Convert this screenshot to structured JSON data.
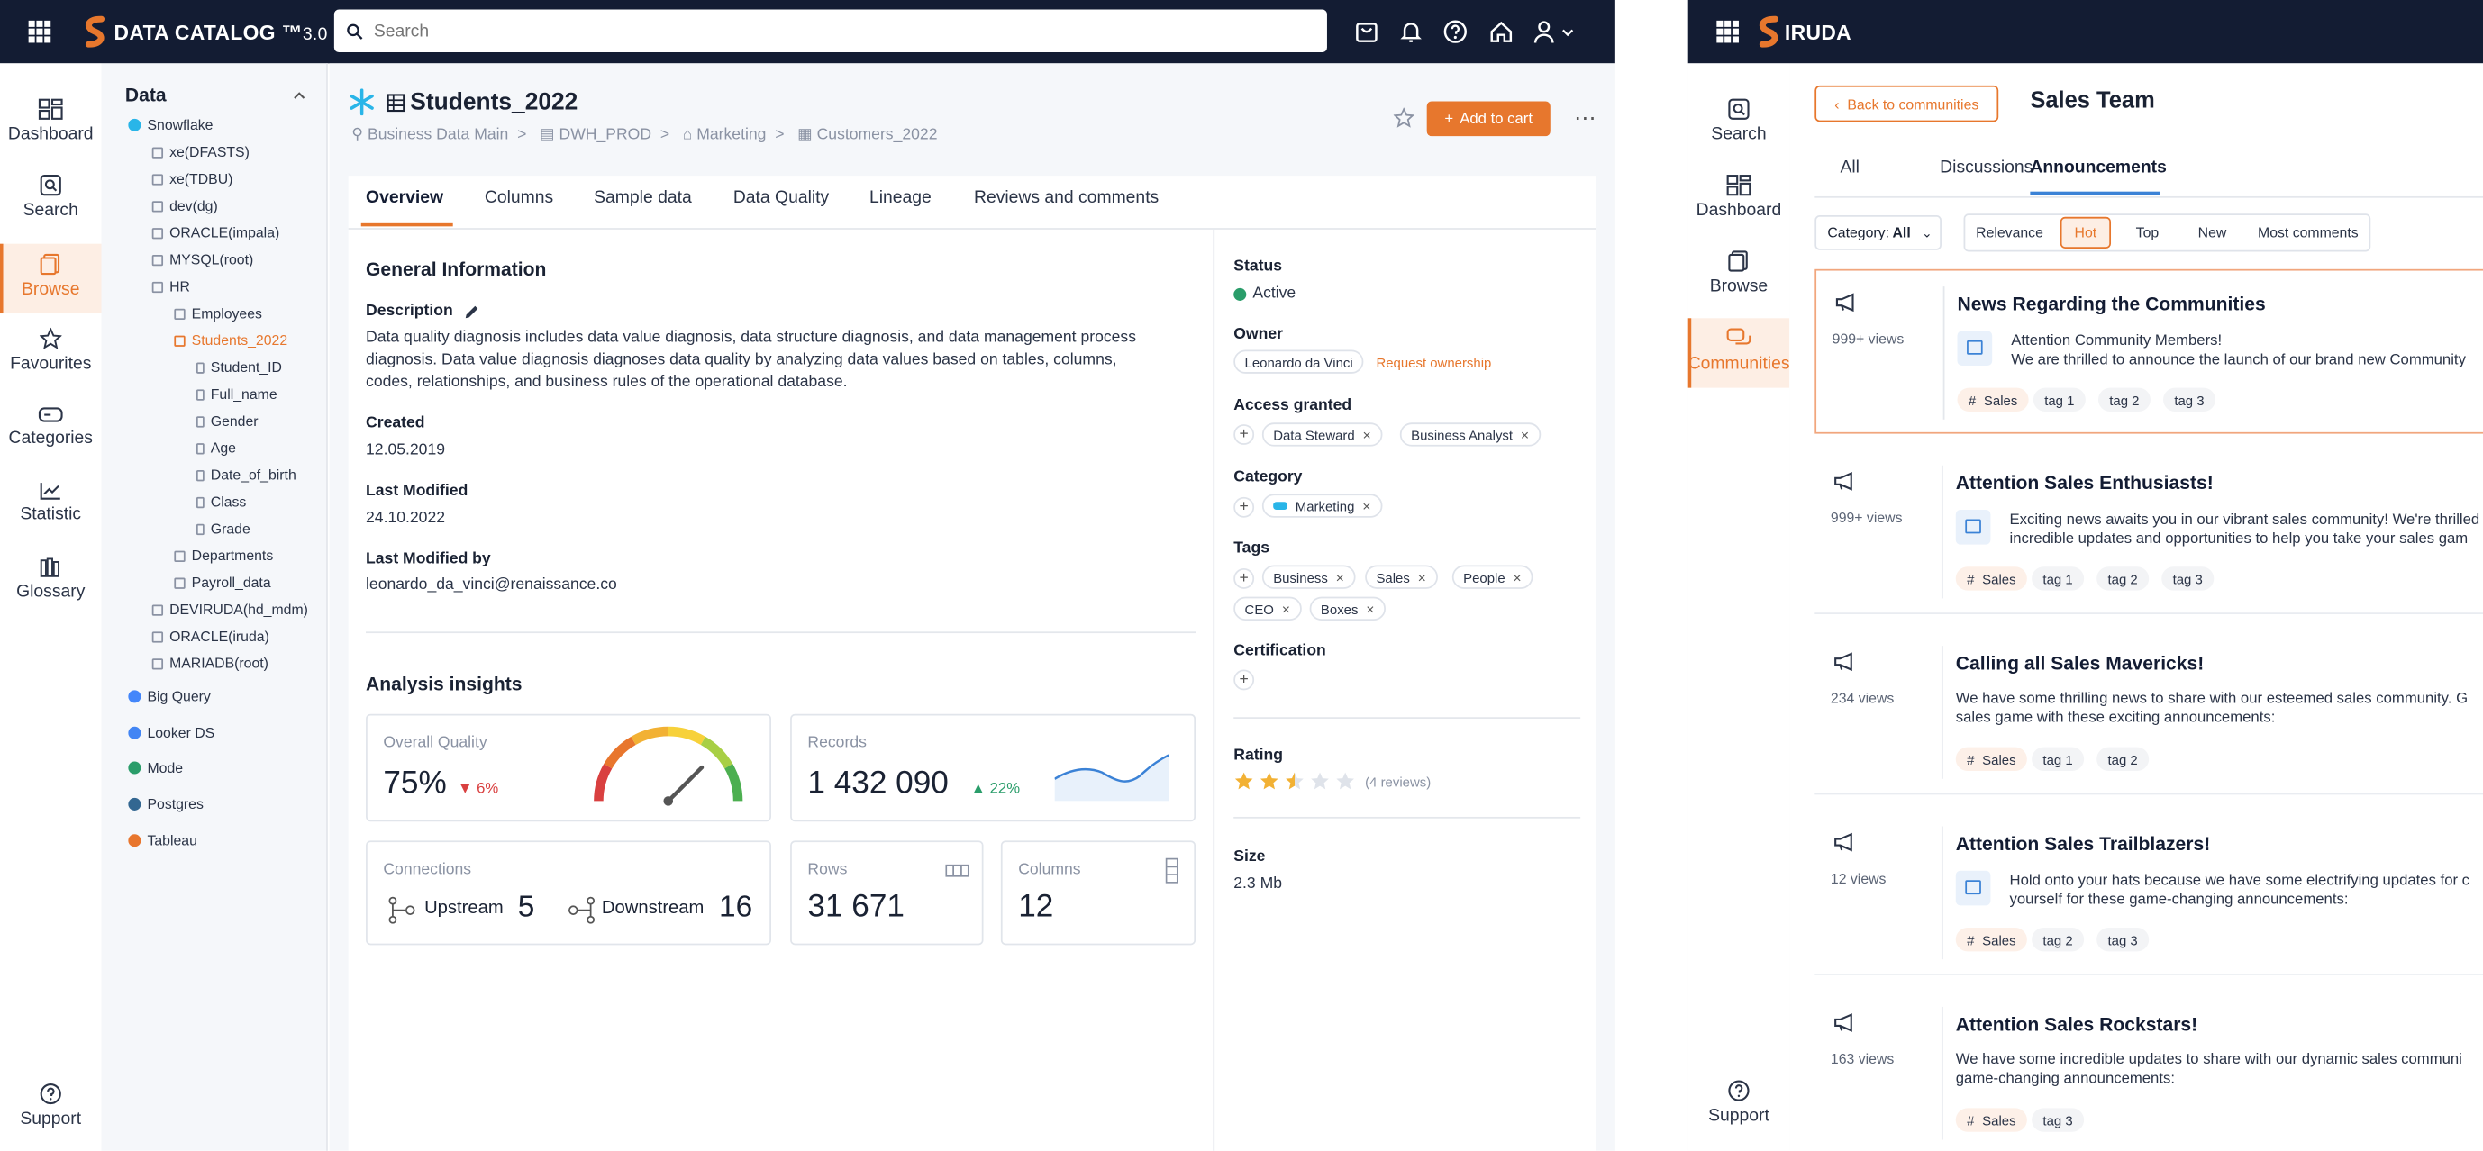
{
  "left_app": {
    "brand": "DATA CATALOG ™",
    "brand_version": "3.0",
    "search_placeholder": "Search",
    "rail": [
      "Dashboard",
      "Search",
      "Browse",
      "Favourites",
      "Categories",
      "Statistic",
      "Glossary"
    ],
    "support": "Support",
    "tree": {
      "header": "Data",
      "items": [
        {
          "label": "Snowflake",
          "kind": "source"
        },
        {
          "label": "xe(DFASTS)",
          "kind": "db"
        },
        {
          "label": "xe(TDBU)",
          "kind": "db"
        },
        {
          "label": "dev(dg)",
          "kind": "db"
        },
        {
          "label": "ORACLE(impala)",
          "kind": "db"
        },
        {
          "label": "MYSQL(root)",
          "kind": "db"
        },
        {
          "label": "HR",
          "kind": "db"
        },
        {
          "label": "Employees",
          "kind": "table"
        },
        {
          "label": "Students_2022",
          "kind": "table",
          "selected": true
        },
        {
          "label": "Student_ID",
          "kind": "column"
        },
        {
          "label": "Full_name",
          "kind": "column"
        },
        {
          "label": "Gender",
          "kind": "column"
        },
        {
          "label": "Age",
          "kind": "column"
        },
        {
          "label": "Date_of_birth",
          "kind": "column"
        },
        {
          "label": "Class",
          "kind": "column"
        },
        {
          "label": "Grade",
          "kind": "column"
        },
        {
          "label": "Departments",
          "kind": "table"
        },
        {
          "label": "Payroll_data",
          "kind": "table"
        },
        {
          "label": "DEVIRUDA(hd_mdm)",
          "kind": "db"
        },
        {
          "label": "ORACLE(iruda)",
          "kind": "db"
        },
        {
          "label": "MARIADB(root)",
          "kind": "db"
        },
        {
          "label": "Big Query",
          "kind": "source"
        },
        {
          "label": "Looker DS",
          "kind": "source"
        },
        {
          "label": "Mode",
          "kind": "source"
        },
        {
          "label": "Postgres",
          "kind": "source"
        },
        {
          "label": "Tableau",
          "kind": "source"
        }
      ]
    },
    "asset": {
      "title": "Students_2022",
      "breadcrumb": [
        "Business Data Main",
        "DWH_PROD",
        "Marketing",
        "Customers_2022"
      ],
      "add_to_cart": "Add to cart",
      "tabs": [
        "Overview",
        "Columns",
        "Sample data",
        "Data Quality",
        "Lineage",
        "Reviews and comments"
      ],
      "general_info_title": "General Information",
      "description_label": "Description",
      "description_lines": [
        "Data quality diagnosis includes data value diagnosis, data structure diagnosis, and data management process",
        "diagnosis. Data value diagnosis diagnoses data quality by analyzing data values based on tables, columns,",
        "codes, relationships, and business rules of the operational database."
      ],
      "created_label": "Created",
      "created": "12.05.2019",
      "last_modified_label": "Last Modified",
      "last_modified": "24.10.2022",
      "last_modified_by_label": "Last Modified by",
      "last_modified_by": "leonardo_da_vinci@renaissance.co",
      "insights_title": "Analysis insights",
      "overall_quality_label": "Overall Quality",
      "overall_quality": "75%",
      "overall_quality_change": "6%",
      "records_label": "Records",
      "records": "1 432 090",
      "records_change": "22%",
      "connections_label": "Connections",
      "upstream_label": "Upstream",
      "upstream": "5",
      "downstream_label": "Downstream",
      "downstream": "16",
      "rows_label": "Rows",
      "rows": "31 671",
      "columns_label": "Columns",
      "columns": "12",
      "gauge_value": 0.75,
      "sidebar": {
        "status_label": "Status",
        "status": "Active",
        "owner_label": "Owner",
        "owner": "Leonardo da Vinci",
        "request_ownership": "Request ownership",
        "access_label": "Access granted",
        "access": [
          "Data Steward",
          "Business Analyst"
        ],
        "category_label": "Category",
        "category": "Marketing",
        "tags_label": "Tags",
        "tags": [
          "Business",
          "Sales",
          "People",
          "CEO",
          "Boxes"
        ],
        "certification_label": "Certification",
        "rating_label": "Rating",
        "rating": 2.5,
        "reviews": "(4 reviews)",
        "size_label": "Size",
        "size": "2.3 Mb"
      }
    }
  },
  "right_app": {
    "brand": "IRUDA",
    "rail": [
      "Search",
      "Dashboard",
      "Browse",
      "Communities"
    ],
    "support": "Support",
    "back": "Back to communities",
    "title": "Sales Team",
    "tabs": [
      "All",
      "Discussions",
      "Announcements"
    ],
    "category_filter_label": "Category:",
    "category_filter_value": "All",
    "sort": [
      "Relevance",
      "Hot",
      "Top",
      "New",
      "Most comments"
    ],
    "posts": [
      {
        "views": "999+ views",
        "title": "News Regarding the Communities",
        "lines": [
          "Attention Community Members!",
          "We are thrilled to announce the launch of our brand new Community"
        ],
        "has_icon": true,
        "tags": [
          "Sales",
          "tag 1",
          "tag 2",
          "tag 3"
        ]
      },
      {
        "views": "999+ views",
        "title": "Attention Sales Enthusiasts!",
        "lines": [
          "Exciting news awaits you in our vibrant sales community! We're thrilled",
          "incredible updates and opportunities to help you take your sales gam"
        ],
        "has_icon": true,
        "tags": [
          "Sales",
          "tag 1",
          "tag 2",
          "tag 3"
        ]
      },
      {
        "views": "234 views",
        "title": "Calling all Sales Mavericks!",
        "lines": [
          "We have some thrilling news to share with our esteemed sales community. G",
          "sales game with these exciting announcements:"
        ],
        "has_icon": false,
        "tags": [
          "Sales",
          "tag 1",
          "tag 2"
        ]
      },
      {
        "views": "12 views",
        "title": "Attention Sales Trailblazers!",
        "lines": [
          "Hold onto your hats because we have some electrifying updates for c",
          "yourself for these game-changing announcements:"
        ],
        "has_icon": true,
        "tags": [
          "Sales",
          "tag 2",
          "tag 3"
        ]
      },
      {
        "views": "163 views",
        "title": "Attention Sales Rockstars!",
        "lines": [
          "We have some incredible updates to share with our dynamic sales communi",
          "game-changing announcements:"
        ],
        "has_icon": false,
        "tags": [
          "Sales",
          "tag 3"
        ]
      }
    ]
  },
  "colors": {
    "navy": "#131c33",
    "accent": "#e7772d",
    "green": "#2a9d6a",
    "red": "#d94040",
    "blue": "#3b82d6"
  }
}
